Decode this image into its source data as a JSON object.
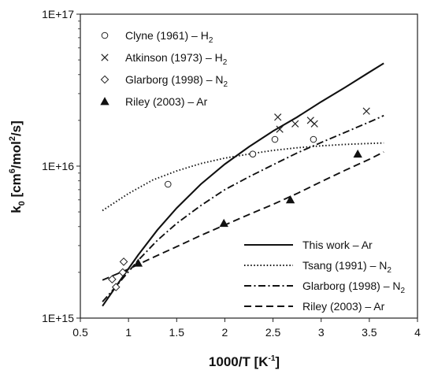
{
  "chart_data": {
    "type": "scatter",
    "xlabel": "1000/T [K",
    "xlabel_sup": "-1",
    "xlabel_end": "]",
    "ylabel_main": "k",
    "ylabel_sub": "0",
    "ylabel_bracket": " [cm",
    "ylabel_sup1": "6",
    "ylabel_mid": "/mol",
    "ylabel_sup2": "2",
    "ylabel_end": "/s]",
    "xlim": [
      0.5,
      4
    ],
    "ylim": [
      1000000000000000.0,
      1e+17
    ],
    "yscale": "log",
    "grid": false,
    "x_ticks": [
      0.5,
      1,
      1.5,
      2,
      2.5,
      3,
      3.5,
      4
    ],
    "x_tick_labels": [
      "0.5",
      "1",
      "1.5",
      "2",
      "2.5",
      "3",
      "3.5",
      "4"
    ],
    "y_ticks": [
      1000000000000000.0,
      1e+16,
      1e+17
    ],
    "y_tick_labels": [
      "1E+15",
      "1E+16",
      "1E+17"
    ],
    "scatter_series": [
      {
        "label": "Clyne (1961) – H",
        "label_sub": "2",
        "marker": "circle",
        "points": [
          [
            1.41,
            7600000000000000.0
          ],
          [
            2.29,
            1.2e+16
          ],
          [
            2.52,
            1.5e+16
          ],
          [
            2.92,
            1.5e+16
          ]
        ]
      },
      {
        "label": "Atkinson (1973) – H",
        "label_sub": "2",
        "marker": "x",
        "points": [
          [
            2.55,
            2.1e+16
          ],
          [
            2.57,
            1.75e+16
          ],
          [
            2.73,
            1.9e+16
          ],
          [
            2.89,
            2e+16
          ],
          [
            2.93,
            1.9e+16
          ],
          [
            3.47,
            2.3e+16
          ]
        ]
      },
      {
        "label": "Glarborg (1998) – N",
        "label_sub": "2",
        "marker": "diamond",
        "points": [
          [
            0.83,
            1800000000000000.0
          ],
          [
            0.87,
            1600000000000000.0
          ],
          [
            0.94,
            2000000000000000.0
          ],
          [
            0.95,
            2350000000000000.0
          ]
        ]
      },
      {
        "label": "Riley (2003) – Ar",
        "label_sub": "",
        "marker": "triangle",
        "points": [
          [
            1.1,
            2300000000000000.0
          ],
          [
            1.99,
            4200000000000000.0
          ],
          [
            2.68,
            6000000000000000.0
          ],
          [
            3.38,
            1.2e+16
          ]
        ]
      }
    ],
    "line_series": [
      {
        "label": "This work – Ar",
        "label_sub": "",
        "style": "solid",
        "points": [
          [
            0.73,
            1200000000000000.0
          ],
          [
            0.9,
            1720000000000000.0
          ],
          [
            1.1,
            2600000000000000.0
          ],
          [
            1.3,
            3800000000000000.0
          ],
          [
            1.5,
            5300000000000000.0
          ],
          [
            1.75,
            7600000000000000.0
          ],
          [
            2.0,
            1.03e+16
          ],
          [
            2.25,
            1.34e+16
          ],
          [
            2.5,
            1.7e+16
          ],
          [
            2.75,
            2.1e+16
          ],
          [
            3.0,
            2.65e+16
          ],
          [
            3.25,
            3.3e+16
          ],
          [
            3.5,
            4.15e+16
          ],
          [
            3.65,
            4.75e+16
          ]
        ]
      },
      {
        "label": "Tsang (1991) – N",
        "label_sub": "2",
        "style": "dotted",
        "points": [
          [
            0.73,
            5100000000000000.0
          ],
          [
            1.0,
            6600000000000000.0
          ],
          [
            1.25,
            8100000000000000.0
          ],
          [
            1.5,
            9300000000000000.0
          ],
          [
            1.75,
            1.04e+16
          ],
          [
            2.0,
            1.13e+16
          ],
          [
            2.25,
            1.2e+16
          ],
          [
            2.5,
            1.27e+16
          ],
          [
            2.75,
            1.32e+16
          ],
          [
            3.0,
            1.36e+16
          ],
          [
            3.25,
            1.39e+16
          ],
          [
            3.5,
            1.41e+16
          ],
          [
            3.65,
            1.42e+16
          ]
        ]
      },
      {
        "label": "Glarborg (1998) – N",
        "label_sub": "2",
        "style": "dashdot",
        "points": [
          [
            0.73,
            1280000000000000.0
          ],
          [
            0.9,
            1700000000000000.0
          ],
          [
            1.1,
            2400000000000000.0
          ],
          [
            1.3,
            3250000000000000.0
          ],
          [
            1.5,
            4200000000000000.0
          ],
          [
            1.75,
            5500000000000000.0
          ],
          [
            2.0,
            7000000000000000.0
          ],
          [
            2.25,
            8500000000000000.0
          ],
          [
            2.5,
            1.02e+16
          ],
          [
            2.75,
            1.22e+16
          ],
          [
            3.0,
            1.43e+16
          ],
          [
            3.25,
            1.67e+16
          ],
          [
            3.5,
            1.95e+16
          ],
          [
            3.65,
            2.15e+16
          ]
        ]
      },
      {
        "label": "Riley (2003) – Ar",
        "label_sub": "",
        "style": "dashed",
        "points": [
          [
            0.73,
            1780000000000000.0
          ],
          [
            1.0,
            2100000000000000.0
          ],
          [
            1.25,
            2500000000000000.0
          ],
          [
            1.5,
            2950000000000000.0
          ],
          [
            1.75,
            3500000000000000.0
          ],
          [
            2.0,
            4100000000000000.0
          ],
          [
            2.25,
            4800000000000000.0
          ],
          [
            2.5,
            5600000000000000.0
          ],
          [
            2.75,
            6600000000000000.0
          ],
          [
            3.0,
            7900000000000000.0
          ],
          [
            3.25,
            9400000000000000.0
          ],
          [
            3.5,
            1.11e+16
          ],
          [
            3.65,
            1.24e+16
          ]
        ]
      }
    ],
    "legends": [
      {
        "position": "top-left",
        "entries": "scatter_series"
      },
      {
        "position": "bottom-right",
        "entries": "line_series"
      }
    ]
  }
}
